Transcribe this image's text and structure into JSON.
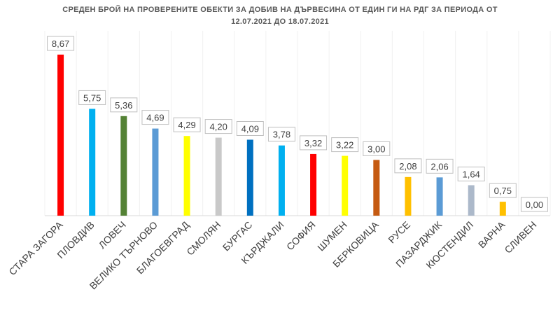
{
  "title_line1": "СРЕДЕН БРОЙ НА ПРОВЕРЕНИТЕ ОБЕКТИ ЗА ДОБИВ НА ДЪРВЕСИНА ОТ ЕДИН ГИ НА РДГ ЗА ПЕРИОДА ОТ",
  "title_line2": "12.07.2021 ДО 18.07.2021",
  "chart_data": {
    "type": "bar",
    "title": "СРЕДЕН БРОЙ НА ПРОВЕРЕНИТЕ ОБЕКТИ ЗА ДОБИВ НА ДЪРВЕСИНА ОТ ЕДИН ГИ НА РДГ ЗА ПЕРИОДА ОТ 12.07.2021 ДО 18.07.2021",
    "categories": [
      "СТАРА ЗАГОРА",
      "ПЛОВДИВ",
      "ЛОВЕЧ",
      "ВЕЛИКО ТЪРНОВО",
      "БЛАГОЕВГРАД",
      "СМОЛЯН",
      "БУРГАС",
      "КЪРДЖАЛИ",
      "СОФИЯ",
      "ШУМЕН",
      "БЕРКОВИЦА",
      "РУСЕ",
      "ПАЗАРДЖИК",
      "КЮСТЕНДИЛ",
      "ВАРНА",
      "СЛИВЕН"
    ],
    "values": [
      8.67,
      5.75,
      5.36,
      4.69,
      4.29,
      4.2,
      4.09,
      3.78,
      3.32,
      3.22,
      3.0,
      2.08,
      2.06,
      1.64,
      0.75,
      0.0
    ],
    "labels": [
      "8,67",
      "5,75",
      "5,36",
      "4,69",
      "4,29",
      "4,20",
      "4,09",
      "3,78",
      "3,32",
      "3,22",
      "3,00",
      "2,08",
      "2,06",
      "1,64",
      "0,75",
      "0,00"
    ],
    "colors": [
      "#ff0000",
      "#00b0f0",
      "#548235",
      "#5b9bd5",
      "#ffff00",
      "#c9c9c9",
      "#0070c0",
      "#00b0f0",
      "#ff0000",
      "#ffff00",
      "#c55a11",
      "#ffc000",
      "#5b9bd5",
      "#acb9ca",
      "#ffc000",
      "#7f7f7f"
    ],
    "ylim": [
      0,
      9
    ],
    "grid": false,
    "legend": "none"
  }
}
